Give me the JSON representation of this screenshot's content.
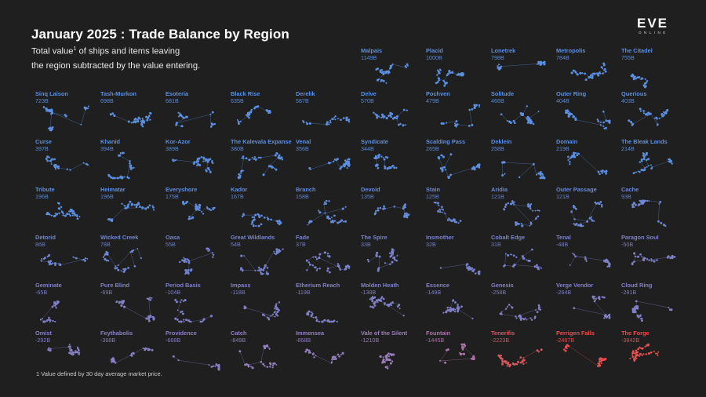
{
  "header": {
    "title": "January 2025 : Trade Balance by Region",
    "subtitle_pre": "Total value",
    "subtitle_sup": "1",
    "subtitle_post": " of ships and items leaving",
    "subtitle_line2": "the region subtracted by the value entering."
  },
  "logo": {
    "wordmark": "EVE",
    "subtext": "ONLINE"
  },
  "footnote": "1 Value defined by 30 day average market price.",
  "colors": {
    "positive": "#5b8fe0",
    "neutral": "#7e80c8",
    "mid": "#9a7fc0",
    "negative": "#e84f4f",
    "background": "#1f1f1f"
  },
  "chart_data": {
    "type": "small-multiples",
    "title": "January 2025 : Trade Balance by Region",
    "unit": "B",
    "regions": [
      {
        "name": "Malpais",
        "value": "1149B"
      },
      {
        "name": "Placid",
        "value": "1000B"
      },
      {
        "name": "Lonetrek",
        "value": "798B"
      },
      {
        "name": "Metropolis",
        "value": "784B"
      },
      {
        "name": "The Citadel",
        "value": "755B"
      },
      {
        "name": "Sinq Laison",
        "value": "723B"
      },
      {
        "name": "Tash-Murkon",
        "value": "698B"
      },
      {
        "name": "Esoteria",
        "value": "681B"
      },
      {
        "name": "Black Rise",
        "value": "635B"
      },
      {
        "name": "Derelik",
        "value": "587B"
      },
      {
        "name": "Delve",
        "value": "570B"
      },
      {
        "name": "Pochven",
        "value": "479B"
      },
      {
        "name": "Solitude",
        "value": "466B"
      },
      {
        "name": "Outer Ring",
        "value": "404B"
      },
      {
        "name": "Querious",
        "value": "403B"
      },
      {
        "name": "Curse",
        "value": "397B"
      },
      {
        "name": "Khanid",
        "value": "394B"
      },
      {
        "name": "Kor-Azor",
        "value": "389B"
      },
      {
        "name": "The Kalevala Expanse",
        "value": "380B"
      },
      {
        "name": "Venal",
        "value": "356B"
      },
      {
        "name": "Syndicate",
        "value": "344B"
      },
      {
        "name": "Scalding Pass",
        "value": "265B"
      },
      {
        "name": "Deklein",
        "value": "258B"
      },
      {
        "name": "Domain",
        "value": "219B"
      },
      {
        "name": "The Bleak Lands",
        "value": "214B"
      },
      {
        "name": "Tribute",
        "value": "196B"
      },
      {
        "name": "Heimatar",
        "value": "196B"
      },
      {
        "name": "Everyshore",
        "value": "175B"
      },
      {
        "name": "Kador",
        "value": "167B"
      },
      {
        "name": "Branch",
        "value": "158B"
      },
      {
        "name": "Devoid",
        "value": "135B"
      },
      {
        "name": "Stain",
        "value": "125B"
      },
      {
        "name": "Aridia",
        "value": "121B"
      },
      {
        "name": "Outer Passage",
        "value": "121B"
      },
      {
        "name": "Cache",
        "value": "93B"
      },
      {
        "name": "Detorid",
        "value": "86B"
      },
      {
        "name": "Wicked Creek",
        "value": "78B"
      },
      {
        "name": "Oasa",
        "value": "55B"
      },
      {
        "name": "Great Wildlands",
        "value": "54B"
      },
      {
        "name": "Fade",
        "value": "37B"
      },
      {
        "name": "The Spire",
        "value": "33B"
      },
      {
        "name": "Insmother",
        "value": "32B"
      },
      {
        "name": "Cobalt Edge",
        "value": "31B"
      },
      {
        "name": "Tenal",
        "value": "-48B"
      },
      {
        "name": "Paragon Soul",
        "value": "-50B"
      },
      {
        "name": "Geminate",
        "value": "-65B"
      },
      {
        "name": "Pure Blind",
        "value": "-69B"
      },
      {
        "name": "Period Basis",
        "value": "-104B"
      },
      {
        "name": "Impass",
        "value": "-118B"
      },
      {
        "name": "Etherium Reach",
        "value": "-119B"
      },
      {
        "name": "Molden Heath",
        "value": "-138B"
      },
      {
        "name": "Essence",
        "value": "-149B"
      },
      {
        "name": "Genesis",
        "value": "-258B"
      },
      {
        "name": "Verge Vendor",
        "value": "-264B"
      },
      {
        "name": "Cloud Ring",
        "value": "-281B"
      },
      {
        "name": "Omist",
        "value": "-292B"
      },
      {
        "name": "Feythabolis",
        "value": "-368B"
      },
      {
        "name": "Providence",
        "value": "-668B"
      },
      {
        "name": "Catch",
        "value": "-849B"
      },
      {
        "name": "Immensea",
        "value": "-868B"
      },
      {
        "name": "Vale of the Silent",
        "value": "-1210B"
      },
      {
        "name": "Fountain",
        "value": "-1445B"
      },
      {
        "name": "Tenerifis",
        "value": "-2223B"
      },
      {
        "name": "Perrigen Falls",
        "value": "-2487B"
      },
      {
        "name": "The Forge",
        "value": "-3842B"
      }
    ]
  }
}
